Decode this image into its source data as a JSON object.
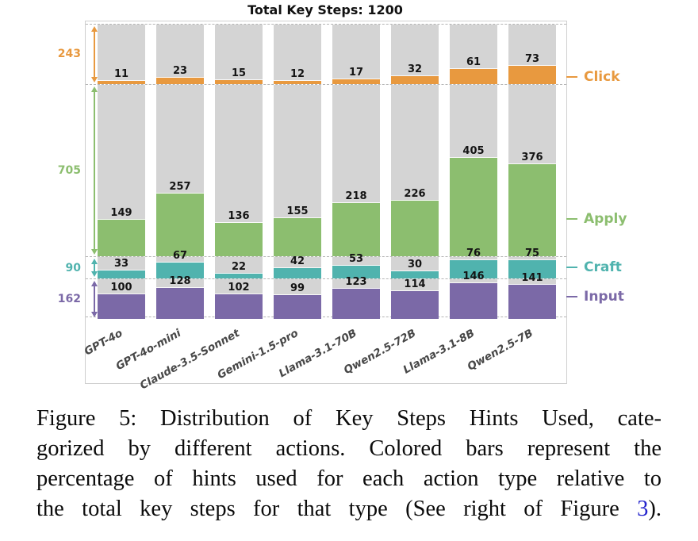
{
  "chart_data": {
    "type": "bar",
    "title": "Total Key Steps: 1200",
    "total_key_steps": 1200,
    "categories": [
      "GPT-4o",
      "GPT-4o-mini",
      "Claude-3.5-Sonnet",
      "Gemini-1.5-pro",
      "Llama-3.1-70B",
      "Qwen2.5-72B",
      "Llama-3.1-8B",
      "Qwen2.5-7B"
    ],
    "series": [
      {
        "name": "Click",
        "total": 243,
        "color": "#E8993F",
        "values": [
          11,
          23,
          15,
          12,
          17,
          32,
          61,
          73
        ]
      },
      {
        "name": "Apply",
        "total": 705,
        "color": "#8CBE6F",
        "values": [
          149,
          257,
          136,
          155,
          218,
          226,
          405,
          376
        ]
      },
      {
        "name": "Craft",
        "total": 90,
        "color": "#50B3AE",
        "values": [
          33,
          67,
          22,
          42,
          53,
          30,
          76,
          75
        ]
      },
      {
        "name": "Input",
        "total": 162,
        "color": "#7B69A7",
        "values": [
          100,
          128,
          102,
          99,
          123,
          114,
          146,
          141
        ]
      }
    ],
    "band_order_top_to_bottom": [
      "Click",
      "Apply",
      "Craft",
      "Input"
    ],
    "background_bar_color": "#d4d4d4",
    "legend_position": "right",
    "gridlines": "dashed horizontal separators between category bands",
    "xlabel": "",
    "ylabel": ""
  },
  "figure": {
    "caption": {
      "lines": [
        "Figure 5: Distribution of Key Steps Hints Used, cate-",
        "gorized by different actions. Colored bars represent the",
        "percentage of hints used for each action type relative to"
      ],
      "last_line_pre": "the total key steps for that type (See right of Figure ",
      "last_line_link": "3",
      "last_line_post": ")."
    }
  }
}
